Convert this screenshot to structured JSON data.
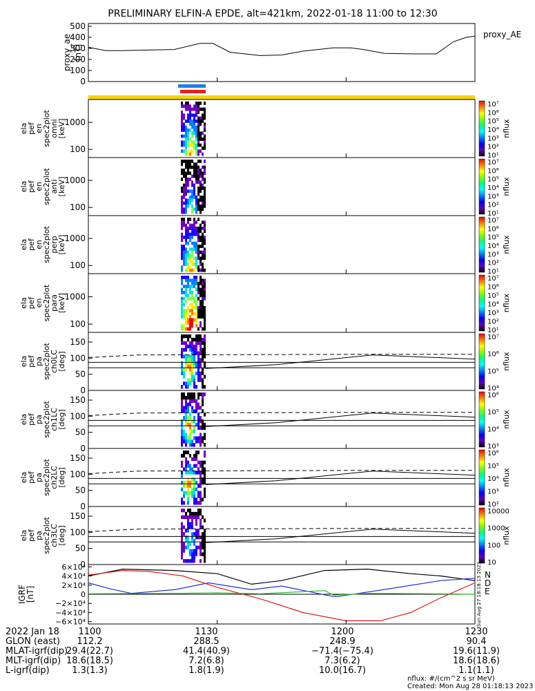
{
  "title": "PRELIMINARY ELFIN-A EPDE, alt=421km, 2022-01-18 11:00 to 12:30",
  "colors": {
    "black": "#000000",
    "blue": "#1f2fd0",
    "red": "#dd1a1a",
    "green": "#22bb22",
    "yellow": "#f5d400",
    "bar_blue": "#1e7fe6",
    "bar_red": "#e8201a"
  },
  "chart_data": [
    {
      "type": "line",
      "panel": "proxy_AE",
      "legend": "proxy_AE",
      "ylabel": [
        "proxy_ae",
        "[nT]"
      ],
      "ylim": [
        0,
        500
      ],
      "yticks": [
        "500",
        "400",
        "300",
        "200",
        "100",
        "0"
      ],
      "ytick_values": [
        500,
        400,
        300,
        200,
        100,
        0
      ],
      "x_minutes": [
        0,
        4,
        8,
        14,
        20,
        26,
        29,
        33,
        40,
        45,
        50,
        57,
        61,
        64,
        69,
        76,
        81,
        85,
        88,
        90
      ],
      "values": [
        310,
        280,
        280,
        285,
        290,
        345,
        345,
        265,
        235,
        240,
        275,
        305,
        305,
        290,
        255,
        250,
        250,
        360,
        400,
        410
      ]
    },
    {
      "type": "heatmap",
      "panel": "en_spec_omni",
      "ylabel": [
        "ela",
        "pef",
        "en",
        "spec2plot",
        "omni",
        "[keV]"
      ],
      "yticks": [
        "1000",
        "100"
      ],
      "ylim_log": [
        50,
        7000
      ],
      "colorbar": [
        "10⁷",
        "10⁶",
        "10⁵",
        "10⁴",
        "10³",
        "10²",
        "10¹"
      ],
      "colorbar_label": "nflux"
    },
    {
      "type": "heatmap",
      "panel": "en_spec_anti",
      "ylabel": [
        "ela",
        "pef",
        "en",
        "spec2plot",
        "anti",
        "[keV]"
      ],
      "yticks": [
        "1000",
        "100"
      ],
      "ylim_log": [
        50,
        7000
      ],
      "colorbar": [
        "10⁷",
        "10⁶",
        "10⁵",
        "10⁴",
        "10³",
        "10²",
        "10¹"
      ],
      "colorbar_label": "nflux"
    },
    {
      "type": "heatmap",
      "panel": "en_spec_perp",
      "ylabel": [
        "ela",
        "pef",
        "en",
        "spec2plot",
        "perp",
        "[keV]"
      ],
      "yticks": [
        "1000",
        "100"
      ],
      "ylim_log": [
        50,
        7000
      ],
      "colorbar": [
        "10⁷",
        "10⁶",
        "10⁵",
        "10⁴",
        "10³",
        "10²",
        "10¹"
      ],
      "colorbar_label": "nflux"
    },
    {
      "type": "heatmap",
      "panel": "en_spec_para",
      "ylabel": [
        "ela",
        "pef",
        "en",
        "spec2plot",
        "para",
        "[keV]"
      ],
      "yticks": [
        "1000",
        "100"
      ],
      "ylim_log": [
        50,
        7000
      ],
      "colorbar": [
        "10⁷",
        "10⁶",
        "10⁵",
        "10⁴",
        "10³",
        "10²",
        "10¹"
      ],
      "colorbar_label": "nflux"
    },
    {
      "type": "heatmap",
      "panel": "pa_spec_ch0LC",
      "ylabel": [
        "ela",
        "pef",
        "pa",
        "spec2plot",
        "ch0LC",
        "[deg]"
      ],
      "yticks": [
        "150",
        "100",
        "50",
        "0"
      ],
      "ylim": [
        0,
        180
      ],
      "colorbar": [
        "10⁷",
        "10⁶",
        "10⁵",
        "10⁴"
      ],
      "colorbar_label": "nflux"
    },
    {
      "type": "heatmap",
      "panel": "pa_spec_ch1LC",
      "ylabel": [
        "ela",
        "pef",
        "pa",
        "spec2plot",
        "ch1LC",
        "[deg]"
      ],
      "yticks": [
        "150",
        "100",
        "50",
        "0"
      ],
      "ylim": [
        0,
        180
      ],
      "colorbar": [
        "10⁶",
        "10⁵",
        "10⁴",
        "10³"
      ],
      "colorbar_label": "nflux"
    },
    {
      "type": "heatmap",
      "panel": "pa_spec_ch2LC",
      "ylabel": [
        "ela",
        "pef",
        "pa",
        "spec2plot",
        "ch2LC",
        "[deg]"
      ],
      "yticks": [
        "150",
        "100",
        "50",
        "0"
      ],
      "ylim": [
        0,
        180
      ],
      "colorbar": [
        "10⁶",
        "10⁵",
        "10⁴",
        "10³",
        "10²"
      ],
      "colorbar_label": "nflux"
    },
    {
      "type": "heatmap",
      "panel": "pa_spec_ch3LC",
      "ylabel": [
        "ela",
        "pef",
        "pa",
        "spec2plot",
        "ch3LC",
        "[deg]"
      ],
      "yticks": [
        "150",
        "100",
        "50",
        "0"
      ],
      "ylim": [
        0,
        180
      ],
      "colorbar": [
        "10000",
        "1000",
        "100",
        "10"
      ],
      "colorbar_label": "nflux"
    },
    {
      "type": "line",
      "panel": "IGRF",
      "ylabel": [
        "IGRF",
        "[nT]"
      ],
      "yticks": [
        "6×10⁴",
        "4×10⁴",
        "2×10⁴",
        "0",
        "−2×10⁴",
        "−4×10⁴",
        "−6×10⁴"
      ],
      "ylim": [
        -65000,
        65000
      ],
      "legend": [
        "N",
        "E",
        "D"
      ],
      "series": [
        {
          "name": "N",
          "color": "black",
          "x_minutes": [
            0,
            8,
            20,
            30,
            38,
            45,
            55,
            65,
            75,
            82,
            90
          ],
          "values": [
            40000,
            55000,
            52000,
            45000,
            22000,
            30000,
            52000,
            55000,
            45000,
            40000,
            30000
          ]
        },
        {
          "name": "E",
          "color": "blue",
          "x_minutes": [
            0,
            5,
            10,
            20,
            28,
            38,
            45,
            57,
            58,
            70,
            82,
            90
          ],
          "values": [
            25000,
            12000,
            2000,
            10000,
            25000,
            10000,
            18000,
            -5000,
            -5000,
            12000,
            30000,
            35000
          ]
        },
        {
          "name": "D",
          "color": "red",
          "x_minutes": [
            0,
            8,
            14,
            22,
            30,
            40,
            50,
            60,
            68,
            75,
            82,
            90
          ],
          "values": [
            42000,
            52000,
            50000,
            40000,
            15000,
            -10000,
            -40000,
            -58000,
            -58000,
            -40000,
            -8000,
            25000
          ]
        },
        {
          "name": "green",
          "color": "green",
          "x_minutes": [
            0,
            20,
            30,
            40,
            55,
            57,
            65,
            80,
            90
          ],
          "values": [
            1000,
            2000,
            3000,
            1000,
            8000,
            -2000,
            2000,
            1000,
            0
          ]
        }
      ]
    }
  ],
  "rotated_stamp": "Sun Aug 27 18:18:13 2023",
  "footer": {
    "rows": [
      {
        "label": "2022 Jan 18",
        "values": [
          "1100",
          "1130",
          "1200",
          "1230"
        ]
      },
      {
        "label": "GLON (east)",
        "values": [
          "112.2",
          "288.5",
          "248.9",
          "90.4"
        ]
      },
      {
        "label": "MLAT-igrf(dip)",
        "values": [
          "29.4(22.7)",
          "41.4(40.9)",
          "−71.4(−75.4)",
          "19.6(11.9)"
        ]
      },
      {
        "label": "MLT-igrf(dip)",
        "values": [
          "18.6(18.5)",
          "7.2(6.8)",
          "7.3(6.2)",
          "18.6(18.6)"
        ]
      },
      {
        "label": "L-igrf(dip)",
        "values": [
          "1.3(1.3)",
          "1.8(1.9)",
          "10.0(16.7)",
          "1.1(1.1)"
        ]
      }
    ],
    "units": "nflux: #/(cm^2 s sr MeV)",
    "created": "Created: Mon Aug 28 01:18:13 2023"
  }
}
